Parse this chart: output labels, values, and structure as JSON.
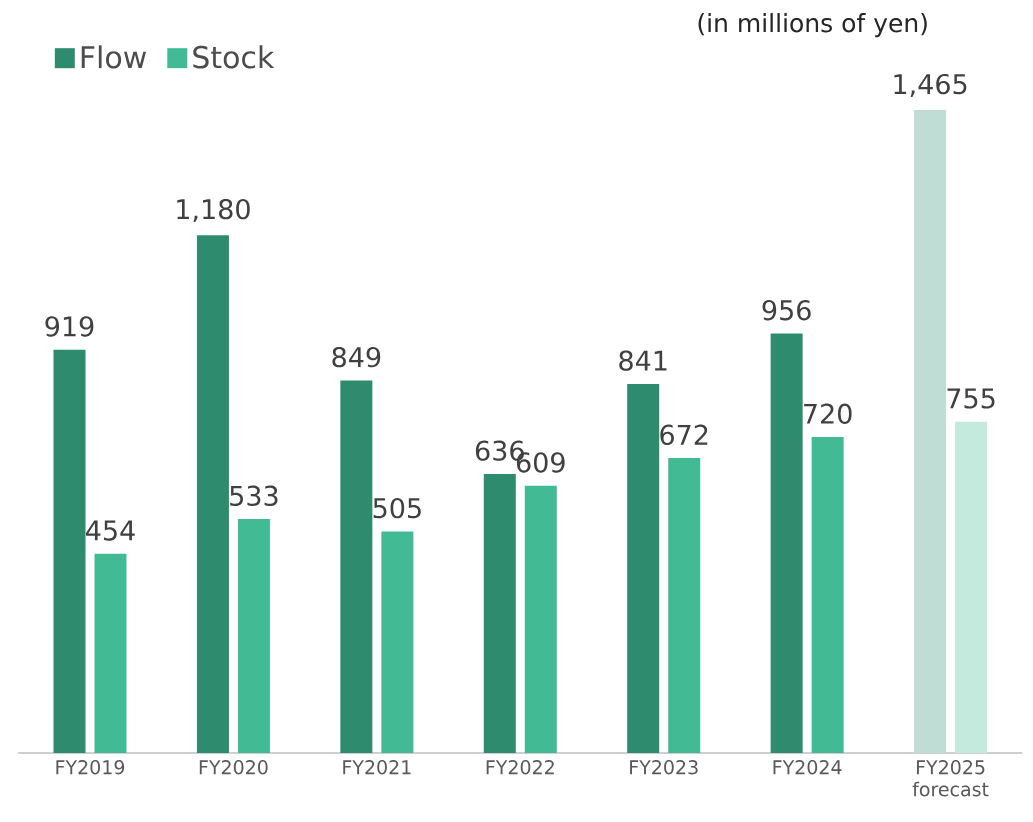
{
  "chart_data": {
    "type": "bar",
    "annotations": [
      "(in millions of yen)"
    ],
    "categories": [
      "FY2019",
      "FY2020",
      "FY2021",
      "FY2022",
      "FY2023",
      "FY2024",
      "FY2025 forecast"
    ],
    "series": [
      {
        "name": "Flow",
        "color": "#2e8b6e",
        "colors": [
          "#2e8b6e",
          "#2e8b6e",
          "#2e8b6e",
          "#2e8b6e",
          "#2e8b6e",
          "#2e8b6e",
          "#c0ddd5"
        ],
        "values": [
          919,
          1180,
          849,
          636,
          841,
          956,
          1465
        ],
        "value_labels": [
          "919",
          "1,180",
          "849",
          "636",
          "841",
          "956",
          "1,465"
        ]
      },
      {
        "name": "Stock",
        "color": "#42bb95",
        "colors": [
          "#42bb95",
          "#42bb95",
          "#42bb95",
          "#42bb95",
          "#42bb95",
          "#42bb95",
          "#c4e9dd"
        ],
        "values": [
          454,
          533,
          505,
          609,
          672,
          720,
          755
        ],
        "value_labels": [
          "454",
          "533",
          "505",
          "609",
          "672",
          "720",
          "755"
        ]
      }
    ],
    "legend": "top left"
  }
}
